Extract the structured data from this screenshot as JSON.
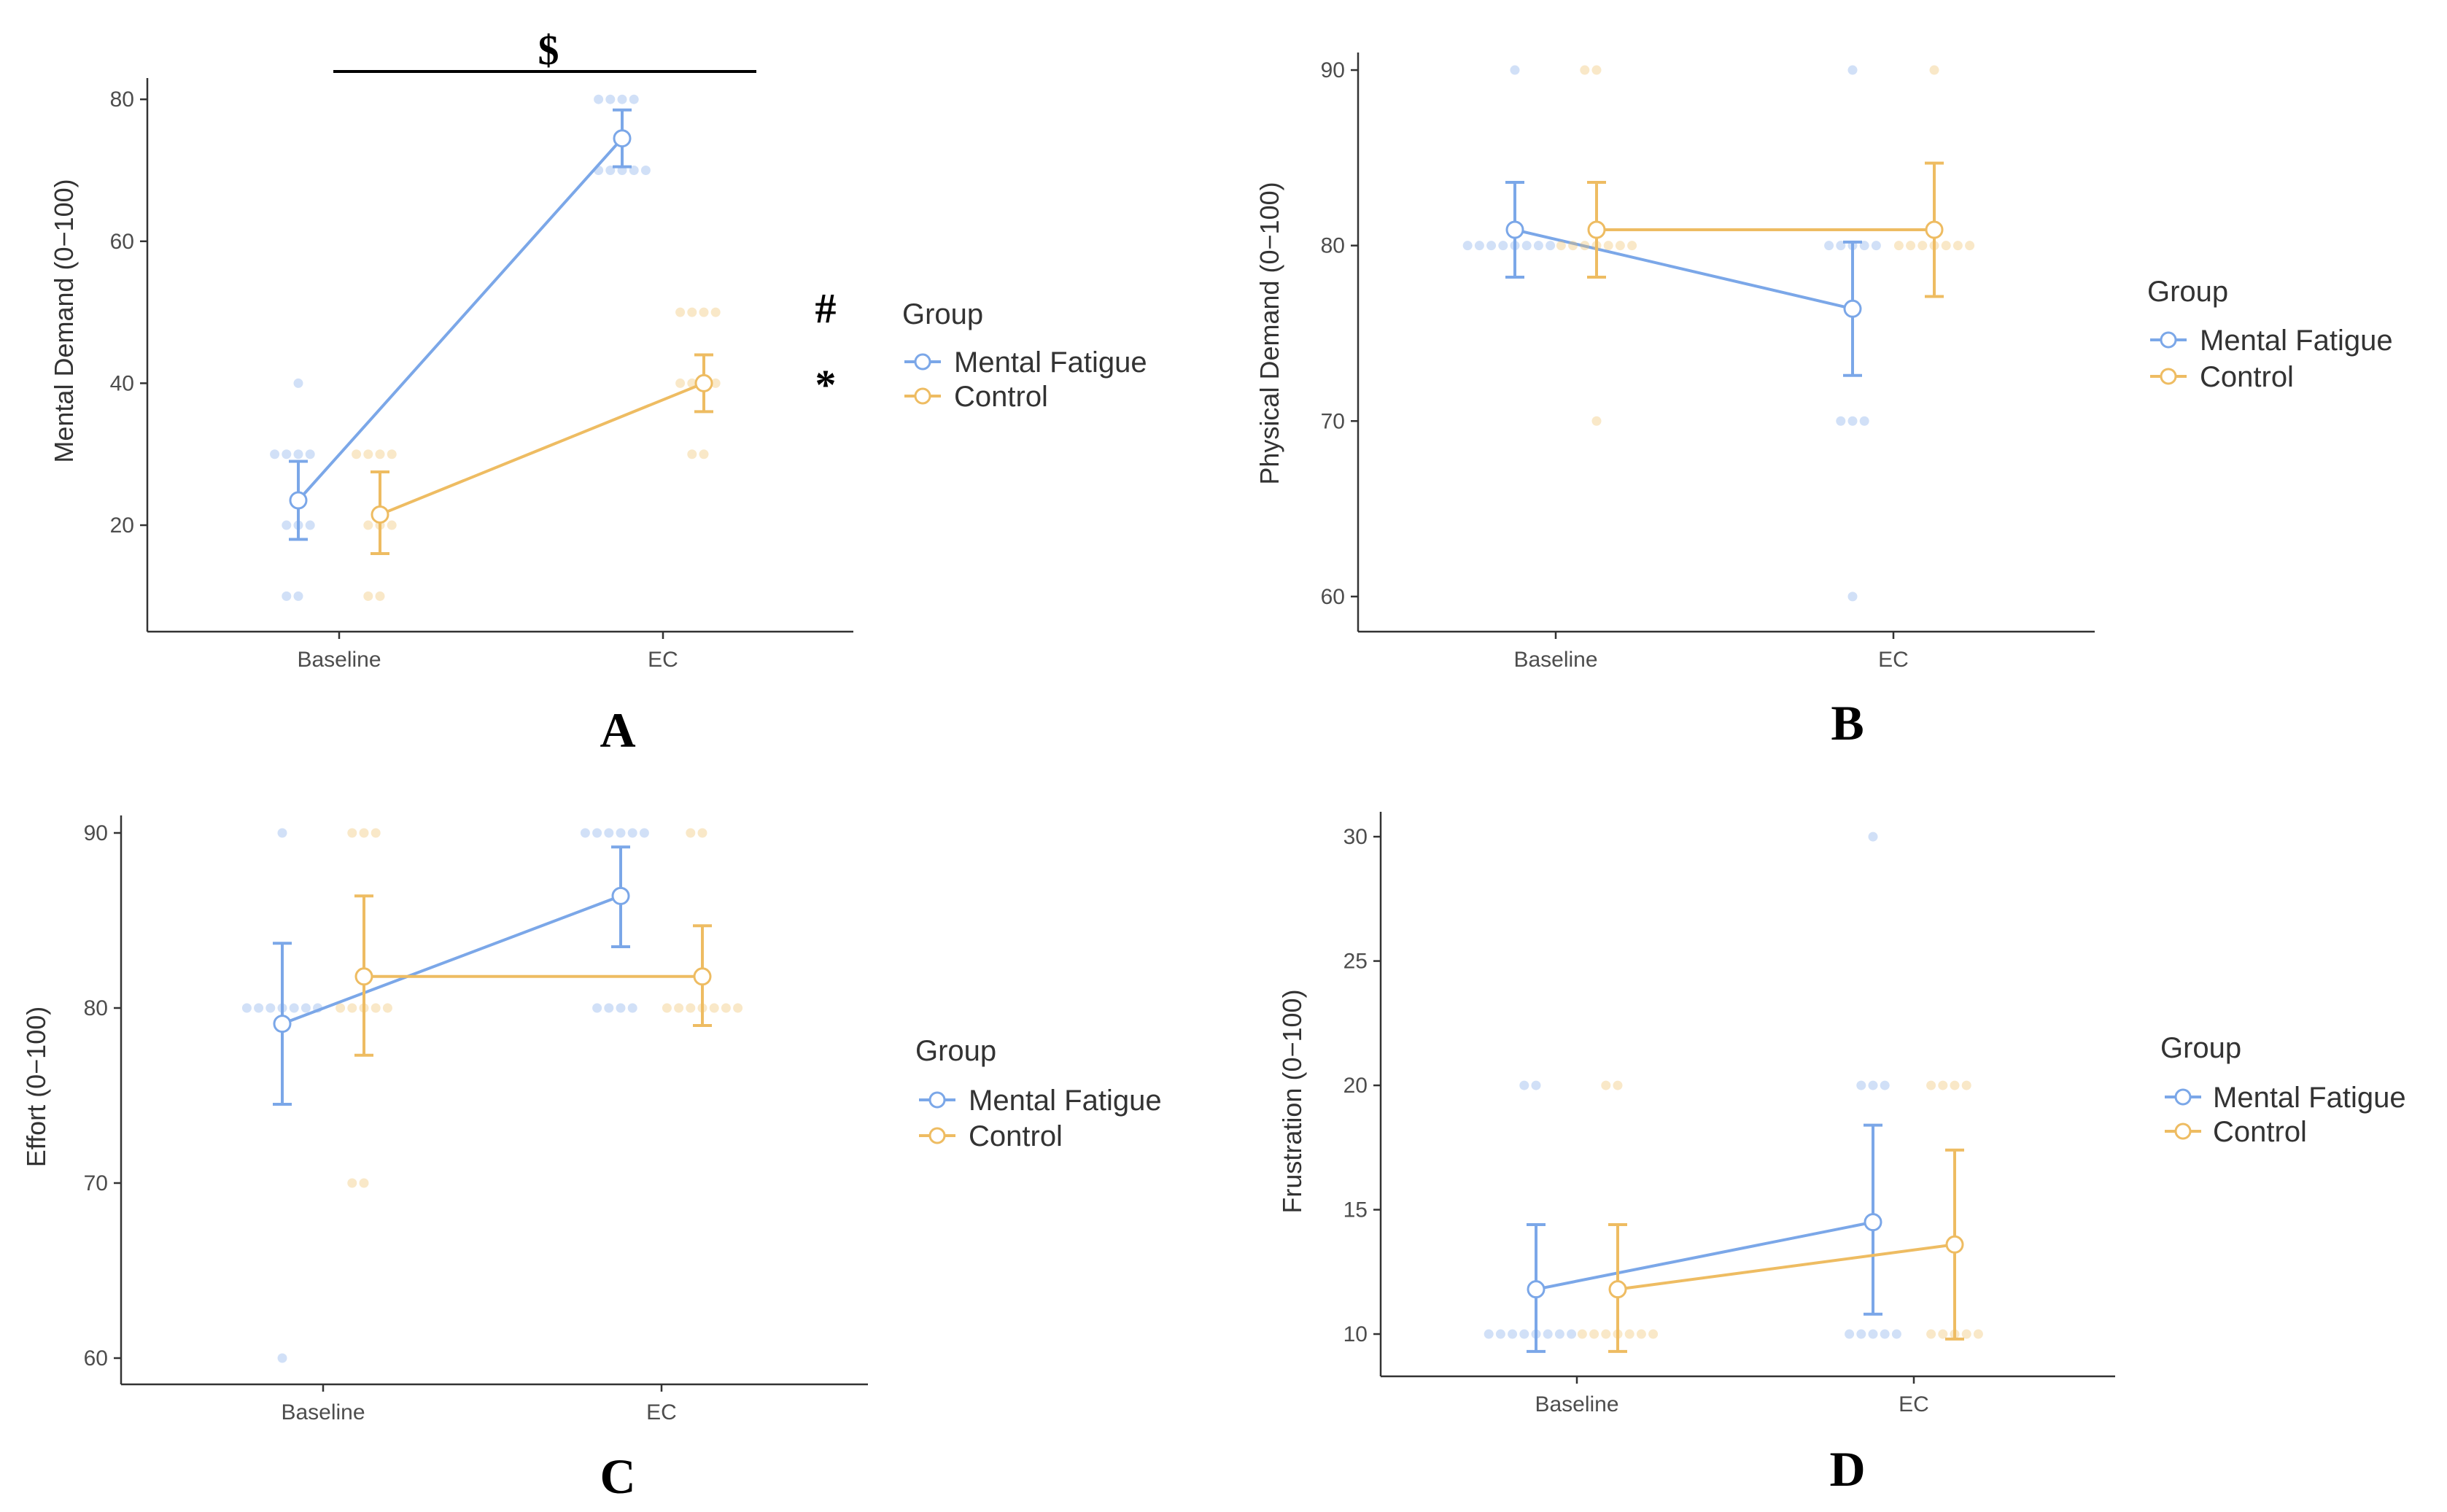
{
  "colors": {
    "mental_fatigue": "#7ba7e8",
    "control": "#eebc62",
    "axis": "#333333",
    "text": "#4d4d4d",
    "background": "#ffffff"
  },
  "legend": {
    "title": "Group",
    "entries": [
      "Mental Fatigue",
      "Control"
    ]
  },
  "chart_data": [
    {
      "panel": "A",
      "type": "line",
      "ylabel": "Mental Demand (0−100)",
      "categories": [
        "Baseline",
        "EC"
      ],
      "ylim": [
        5,
        83
      ],
      "yticks": [
        20,
        40,
        60,
        80
      ],
      "series": [
        {
          "name": "Mental Fatigue",
          "values": [
            23.5,
            74.5
          ],
          "err_low": [
            18,
            70.5
          ],
          "err_high": [
            29,
            78.5
          ],
          "points": [
            [
              0,
              10
            ],
            [
              0,
              20
            ],
            [
              0,
              20
            ],
            [
              0,
              20
            ],
            [
              0,
              30
            ],
            [
              0,
              30
            ],
            [
              0,
              30
            ],
            [
              0,
              30
            ],
            [
              0,
              40
            ],
            [
              0,
              10
            ],
            [
              1,
              70
            ],
            [
              1,
              70
            ],
            [
              1,
              70
            ],
            [
              1,
              70
            ],
            [
              1,
              70
            ],
            [
              1,
              80
            ],
            [
              1,
              80
            ],
            [
              1,
              80
            ],
            [
              1,
              80
            ]
          ]
        },
        {
          "name": "Control",
          "values": [
            21.5,
            40
          ],
          "err_low": [
            16,
            36
          ],
          "err_high": [
            27.5,
            44
          ],
          "points": [
            [
              0,
              10
            ],
            [
              0,
              10
            ],
            [
              0,
              20
            ],
            [
              0,
              20
            ],
            [
              0,
              20
            ],
            [
              0,
              30
            ],
            [
              0,
              30
            ],
            [
              0,
              30
            ],
            [
              0,
              30
            ],
            [
              1,
              30
            ],
            [
              1,
              30
            ],
            [
              1,
              40
            ],
            [
              1,
              40
            ],
            [
              1,
              40
            ],
            [
              1,
              40
            ],
            [
              1,
              50
            ],
            [
              1,
              50
            ],
            [
              1,
              50
            ],
            [
              1,
              50
            ]
          ]
        }
      ],
      "annotations": {
        "bracket": "$",
        "hash": "#",
        "star": "*"
      }
    },
    {
      "panel": "B",
      "type": "line",
      "ylabel": "Physical Demand (0−100)",
      "categories": [
        "Baseline",
        "EC"
      ],
      "ylim": [
        58,
        91
      ],
      "yticks": [
        60,
        70,
        80,
        90
      ],
      "series": [
        {
          "name": "Mental Fatigue",
          "values": [
            80.9,
            76.4
          ],
          "err_low": [
            78.2,
            72.6
          ],
          "err_high": [
            83.6,
            80.2
          ],
          "points": [
            [
              0,
              80
            ],
            [
              0,
              80
            ],
            [
              0,
              80
            ],
            [
              0,
              80
            ],
            [
              0,
              80
            ],
            [
              0,
              80
            ],
            [
              0,
              80
            ],
            [
              0,
              80
            ],
            [
              0,
              90
            ],
            [
              1,
              60
            ],
            [
              1,
              70
            ],
            [
              1,
              70
            ],
            [
              1,
              70
            ],
            [
              1,
              80
            ],
            [
              1,
              80
            ],
            [
              1,
              80
            ],
            [
              1,
              80
            ],
            [
              1,
              80
            ],
            [
              1,
              90
            ]
          ]
        },
        {
          "name": "Control",
          "values": [
            80.9,
            80.9
          ],
          "err_low": [
            78.2,
            77.1
          ],
          "err_high": [
            83.6,
            84.7
          ],
          "points": [
            [
              0,
              70
            ],
            [
              0,
              80
            ],
            [
              0,
              80
            ],
            [
              0,
              80
            ],
            [
              0,
              80
            ],
            [
              0,
              80
            ],
            [
              0,
              80
            ],
            [
              0,
              80
            ],
            [
              0,
              90
            ],
            [
              0,
              90
            ],
            [
              1,
              80
            ],
            [
              1,
              80
            ],
            [
              1,
              80
            ],
            [
              1,
              80
            ],
            [
              1,
              80
            ],
            [
              1,
              80
            ],
            [
              1,
              80
            ],
            [
              1,
              90
            ]
          ]
        }
      ]
    },
    {
      "panel": "C",
      "type": "line",
      "ylabel": "Effort (0−100)",
      "categories": [
        "Baseline",
        "EC"
      ],
      "ylim": [
        58.5,
        91
      ],
      "yticks": [
        60,
        70,
        80,
        90
      ],
      "series": [
        {
          "name": "Mental Fatigue",
          "values": [
            79.1,
            86.4
          ],
          "err_low": [
            74.5,
            83.5
          ],
          "err_high": [
            83.7,
            89.2
          ],
          "points": [
            [
              0,
              60
            ],
            [
              0,
              80
            ],
            [
              0,
              80
            ],
            [
              0,
              80
            ],
            [
              0,
              80
            ],
            [
              0,
              80
            ],
            [
              0,
              80
            ],
            [
              0,
              80
            ],
            [
              0,
              90
            ],
            [
              1,
              80
            ],
            [
              1,
              80
            ],
            [
              1,
              80
            ],
            [
              1,
              80
            ],
            [
              1,
              90
            ],
            [
              1,
              90
            ],
            [
              1,
              90
            ],
            [
              1,
              90
            ],
            [
              1,
              90
            ],
            [
              1,
              90
            ]
          ]
        },
        {
          "name": "Control",
          "values": [
            81.8,
            81.8
          ],
          "err_low": [
            77.3,
            79
          ],
          "err_high": [
            86.4,
            84.7
          ],
          "points": [
            [
              0,
              70
            ],
            [
              0,
              70
            ],
            [
              0,
              80
            ],
            [
              0,
              80
            ],
            [
              0,
              80
            ],
            [
              0,
              80
            ],
            [
              0,
              80
            ],
            [
              0,
              90
            ],
            [
              0,
              90
            ],
            [
              0,
              90
            ],
            [
              1,
              80
            ],
            [
              1,
              80
            ],
            [
              1,
              80
            ],
            [
              1,
              80
            ],
            [
              1,
              80
            ],
            [
              1,
              80
            ],
            [
              1,
              80
            ],
            [
              1,
              90
            ],
            [
              1,
              90
            ]
          ]
        }
      ]
    },
    {
      "panel": "D",
      "type": "line",
      "ylabel": "Frustration (0−100)",
      "categories": [
        "Baseline",
        "EC"
      ],
      "ylim": [
        8.3,
        31
      ],
      "yticks": [
        10,
        15,
        20,
        25,
        30
      ],
      "series": [
        {
          "name": "Mental Fatigue",
          "values": [
            11.8,
            14.5
          ],
          "err_low": [
            9.3,
            10.8
          ],
          "err_high": [
            14.4,
            18.4
          ],
          "points": [
            [
              0,
              10
            ],
            [
              0,
              10
            ],
            [
              0,
              10
            ],
            [
              0,
              10
            ],
            [
              0,
              10
            ],
            [
              0,
              10
            ],
            [
              0,
              10
            ],
            [
              0,
              10
            ],
            [
              0,
              20
            ],
            [
              0,
              20
            ],
            [
              1,
              10
            ],
            [
              1,
              10
            ],
            [
              1,
              10
            ],
            [
              1,
              10
            ],
            [
              1,
              10
            ],
            [
              1,
              20
            ],
            [
              1,
              20
            ],
            [
              1,
              20
            ],
            [
              1,
              30
            ]
          ]
        },
        {
          "name": "Control",
          "values": [
            11.8,
            13.6
          ],
          "err_low": [
            9.3,
            9.8
          ],
          "err_high": [
            14.4,
            17.4
          ],
          "points": [
            [
              0,
              10
            ],
            [
              0,
              10
            ],
            [
              0,
              10
            ],
            [
              0,
              10
            ],
            [
              0,
              10
            ],
            [
              0,
              10
            ],
            [
              0,
              10
            ],
            [
              0,
              20
            ],
            [
              0,
              20
            ],
            [
              1,
              10
            ],
            [
              1,
              10
            ],
            [
              1,
              10
            ],
            [
              1,
              10
            ],
            [
              1,
              10
            ],
            [
              1,
              20
            ],
            [
              1,
              20
            ],
            [
              1,
              20
            ],
            [
              1,
              20
            ]
          ]
        }
      ]
    }
  ]
}
